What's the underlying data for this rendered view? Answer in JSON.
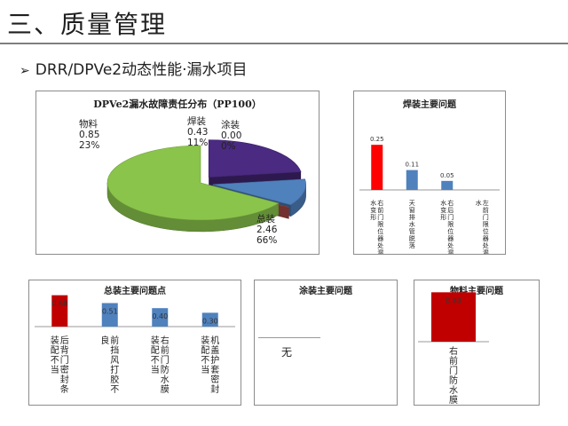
{
  "page_title": "三、质量管理",
  "subtitle": "DRR/DPVe2动态性能·漏水项目",
  "chart_data": [
    {
      "type": "pie",
      "title": "DPVe2漏水故障责任分布（PP100）",
      "slices": [
        {
          "name": "物料",
          "value": 0.85,
          "value_label": "0.85",
          "percent": "23%",
          "color": "#4b2a82"
        },
        {
          "name": "焊装",
          "value": 0.43,
          "value_label": "0.43",
          "percent": "11%",
          "color": "#4f81bd"
        },
        {
          "name": "涂装",
          "value": 0.0,
          "value_label": "0.00",
          "percent": "0%",
          "color": "#c0504d"
        },
        {
          "name": "总装",
          "value": 2.46,
          "value_label": "2.46",
          "percent": "66%",
          "color": "#8ac44b"
        }
      ]
    },
    {
      "type": "bar",
      "title": "焊装主要问题",
      "categories": [
        "右前门限位器处漏水变形",
        "天窗排水管脱落",
        "右后门限位器处漏水变形",
        "左前门限位器处漏水"
      ],
      "values": [
        0.25,
        0.11,
        0.05,
        0
      ],
      "labels": [
        "0.25",
        "0.11",
        "0.05",
        ""
      ],
      "colors": [
        "#ff0000",
        "#4f81bd",
        "#4f81bd",
        "#4f81bd"
      ],
      "ylim": [
        0,
        0.3
      ]
    },
    {
      "type": "bar",
      "title": "总装主要问题点",
      "categories": [
        "后背门密封条装配不当",
        "前挡风打胶不良",
        "右前门防水膜装配不当",
        "机盖护套密封装配不当"
      ],
      "values": [
        0.68,
        0.51,
        0.4,
        0.3
      ],
      "labels": [
        "0.68",
        "0.51",
        "0.40",
        "0.30"
      ],
      "colors": [
        "#c00000",
        "#4f81bd",
        "#4f81bd",
        "#4f81bd"
      ],
      "ylim": [
        0,
        0.75
      ]
    },
    {
      "type": "table",
      "title": "涂装主要问题",
      "rows": [
        [
          "无"
        ]
      ]
    },
    {
      "type": "bar",
      "title": "物料主要问题",
      "categories": [
        "右前门防水膜"
      ],
      "values": [
        0.83
      ],
      "labels": [
        "0.83"
      ],
      "colors": [
        "#c00000"
      ],
      "ylim": [
        0,
        0.85
      ]
    }
  ]
}
